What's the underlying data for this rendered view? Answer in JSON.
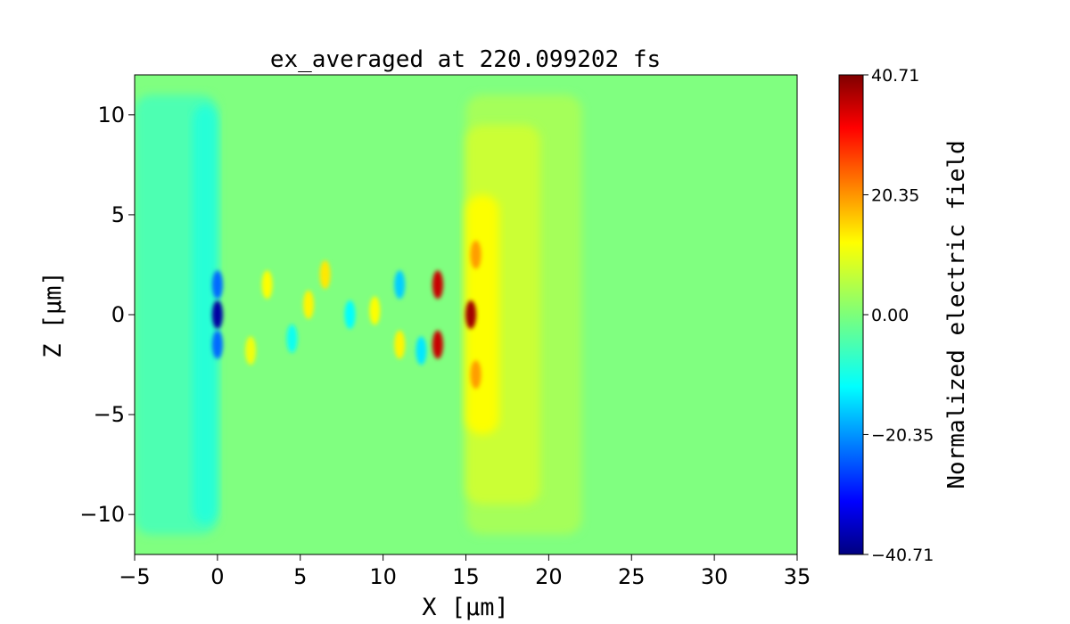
{
  "chart_data": {
    "type": "heatmap",
    "title": "ex_averaged at 220.099202 fs",
    "xlabel": "X [μm]",
    "ylabel": "Z [μm]",
    "xlim": [
      -5,
      35
    ],
    "ylim": [
      -12,
      12
    ],
    "x_ticks": [
      -5,
      0,
      5,
      10,
      15,
      20,
      25,
      30,
      35
    ],
    "y_ticks": [
      -10,
      -5,
      0,
      5,
      10
    ],
    "x_tick_labels": [
      "−5",
      "0",
      "5",
      "10",
      "15",
      "20",
      "25",
      "30",
      "35"
    ],
    "y_tick_labels": [
      "−10",
      "−5",
      "0",
      "5",
      "10"
    ],
    "colormap": "jet",
    "colorbar": {
      "label": "Normalized electric field",
      "min": -40.71,
      "max": 40.71,
      "tick_values": [
        -40.71,
        -20.35,
        0.0,
        20.35,
        40.71
      ],
      "tick_labels": [
        "−40.71",
        "−20.35",
        "0.00",
        "20.35",
        "40.71"
      ]
    },
    "background_value": 0.0,
    "features": [
      {
        "shape": "box",
        "x_range": [
          -5,
          0
        ],
        "z_range": [
          -11,
          11
        ],
        "value": -4
      },
      {
        "shape": "box",
        "x_range": [
          -1.5,
          0
        ],
        "z_range": [
          -10.5,
          10.5
        ],
        "value": -7
      },
      {
        "shape": "box",
        "x_range": [
          15,
          22
        ],
        "z_range": [
          -11,
          11
        ],
        "value": 3
      },
      {
        "shape": "box",
        "x_range": [
          15,
          19.5
        ],
        "z_range": [
          -9.5,
          9.5
        ],
        "value": 6
      },
      {
        "shape": "box",
        "x_range": [
          15,
          17
        ],
        "z_range": [
          -6,
          6
        ],
        "value": 10
      },
      {
        "shape": "spot",
        "x": 0,
        "z": 0,
        "value": -38
      },
      {
        "shape": "spot",
        "x": 0,
        "z": 1.5,
        "value": -22
      },
      {
        "shape": "spot",
        "x": 0,
        "z": -1.5,
        "value": -22
      },
      {
        "shape": "spot",
        "x": 15.3,
        "z": 0,
        "value": 38
      },
      {
        "shape": "spot",
        "x": 13.3,
        "z": 1.5,
        "value": 35
      },
      {
        "shape": "spot",
        "x": 13.3,
        "z": -1.5,
        "value": 35
      },
      {
        "shape": "spot",
        "x": 15.6,
        "z": 3.0,
        "value": 18
      },
      {
        "shape": "spot",
        "x": 15.6,
        "z": -3.0,
        "value": 18
      },
      {
        "shape": "spot",
        "x": 3,
        "z": 1.5,
        "value": 10
      },
      {
        "shape": "spot",
        "x": 4.5,
        "z": -1.2,
        "value": -9
      },
      {
        "shape": "spot",
        "x": 6.5,
        "z": 2,
        "value": 12
      },
      {
        "shape": "spot",
        "x": 8,
        "z": 0,
        "value": -10
      },
      {
        "shape": "spot",
        "x": 9.5,
        "z": 0.2,
        "value": 10
      },
      {
        "shape": "spot",
        "x": 11,
        "z": 1.5,
        "value": -14
      },
      {
        "shape": "spot",
        "x": 11,
        "z": -1.5,
        "value": 11
      },
      {
        "shape": "spot",
        "x": 12.3,
        "z": -1.8,
        "value": -12
      },
      {
        "shape": "spot",
        "x": 2,
        "z": -1.8,
        "value": 9
      },
      {
        "shape": "spot",
        "x": 5.5,
        "z": 0.5,
        "value": 11
      }
    ]
  }
}
